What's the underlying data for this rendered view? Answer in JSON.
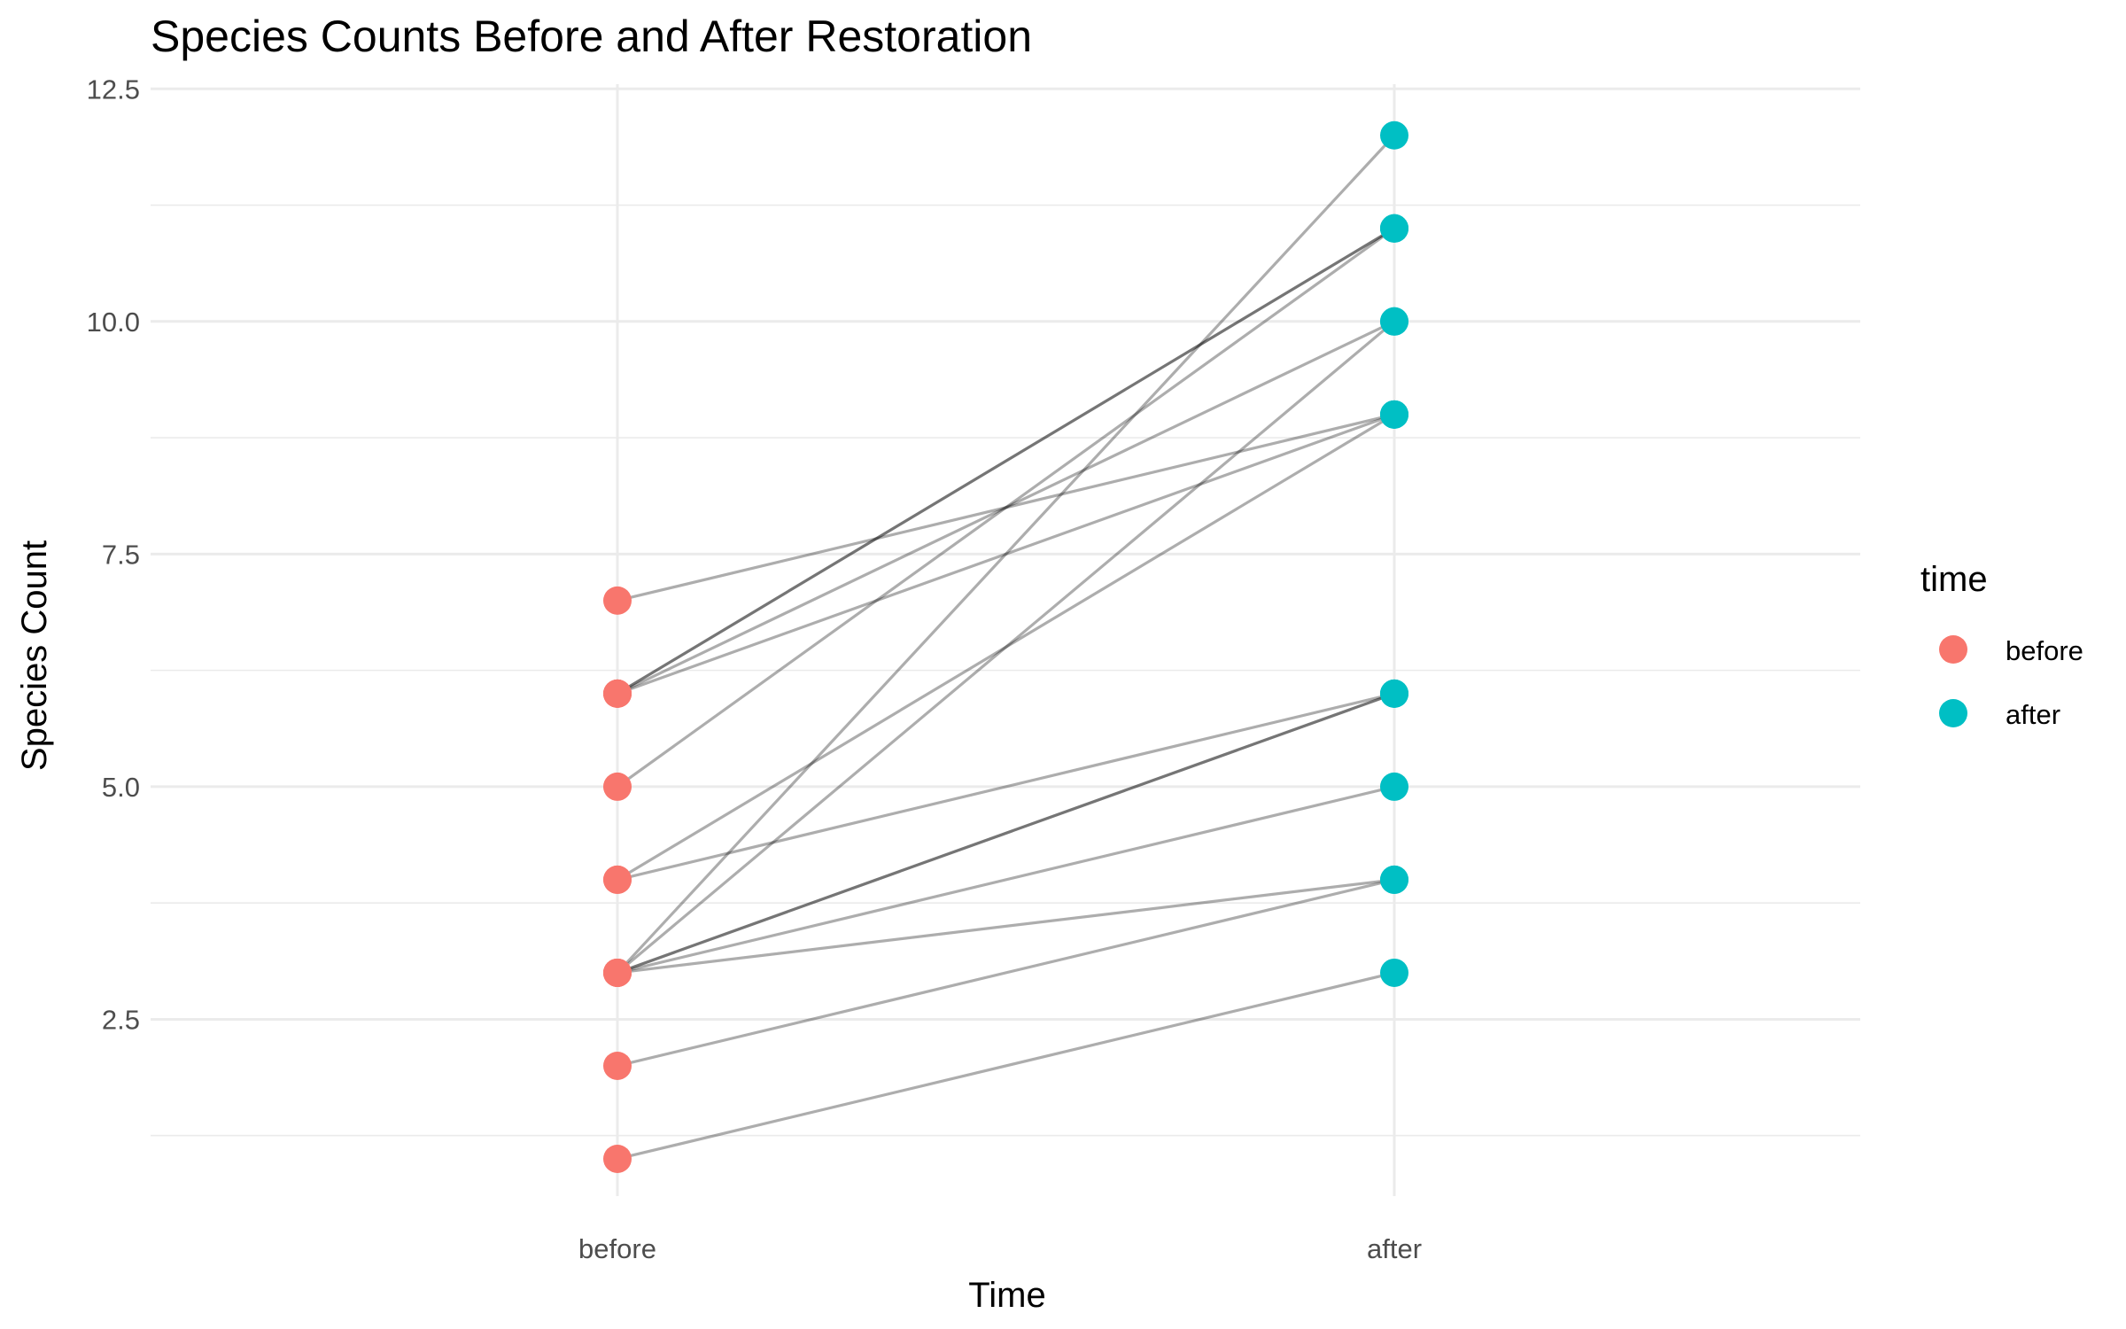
{
  "chart_data": {
    "type": "line",
    "title": "Species Counts Before and After Restoration",
    "xlabel": "Time",
    "ylabel": "Species Count",
    "categories": [
      "before",
      "after"
    ],
    "ylim": [
      0.6,
      12.55
    ],
    "yticks": [
      "2.5",
      "5.0",
      "7.5",
      "10.0",
      "12.5"
    ],
    "grid": true,
    "legend": {
      "title": "time",
      "position": "right",
      "entries": [
        {
          "label": "before",
          "color": "#F8766D"
        },
        {
          "label": "after",
          "color": "#00BFC4"
        }
      ]
    },
    "line_color": "#000000",
    "pairs": [
      {
        "before": 7,
        "after": 9
      },
      {
        "before": 6,
        "after": 11
      },
      {
        "before": 6,
        "after": 11
      },
      {
        "before": 6,
        "after": 10
      },
      {
        "before": 6,
        "after": 9
      },
      {
        "before": 5,
        "after": 11
      },
      {
        "before": 4,
        "after": 9
      },
      {
        "before": 4,
        "after": 6
      },
      {
        "before": 3,
        "after": 12
      },
      {
        "before": 3,
        "after": 10
      },
      {
        "before": 3,
        "after": 6
      },
      {
        "before": 3,
        "after": 6
      },
      {
        "before": 3,
        "after": 5
      },
      {
        "before": 3,
        "after": 4
      },
      {
        "before": 2,
        "after": 4
      },
      {
        "before": 1,
        "after": 3
      }
    ]
  }
}
